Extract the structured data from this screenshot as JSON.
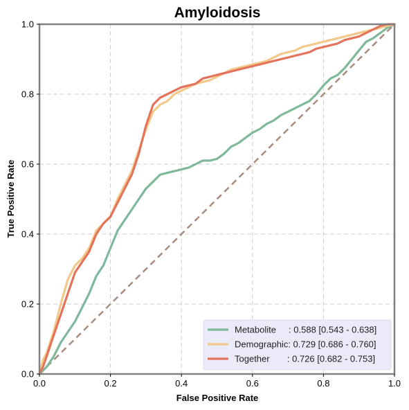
{
  "chart_data": {
    "type": "line",
    "title": "Amyloidosis",
    "xlabel": "False Positive Rate",
    "ylabel": "True Positive Rate",
    "xlim": [
      0,
      1
    ],
    "ylim": [
      0,
      1
    ],
    "xticks": [
      "0.0",
      "0.2",
      "0.4",
      "0.6",
      "0.8",
      "1.0"
    ],
    "yticks": [
      "0.0",
      "0.2",
      "0.4",
      "0.6",
      "0.8",
      "1.0"
    ],
    "grid": true,
    "legend_position": "bottom-right",
    "chance_line": {
      "x": [
        0,
        1
      ],
      "y": [
        0,
        1
      ],
      "color": "#a88c7d",
      "style": "dashed"
    },
    "series": [
      {
        "name": "Metabolite",
        "label": "Metabolite     : 0.588 [0.543 - 0.638]",
        "color": "#7fb89a",
        "x": [
          0,
          0.02,
          0.04,
          0.06,
          0.08,
          0.1,
          0.12,
          0.14,
          0.16,
          0.18,
          0.2,
          0.22,
          0.24,
          0.26,
          0.28,
          0.3,
          0.32,
          0.34,
          0.36,
          0.38,
          0.4,
          0.42,
          0.44,
          0.46,
          0.48,
          0.5,
          0.52,
          0.54,
          0.56,
          0.58,
          0.6,
          0.62,
          0.64,
          0.66,
          0.68,
          0.7,
          0.72,
          0.74,
          0.76,
          0.78,
          0.8,
          0.82,
          0.84,
          0.86,
          0.88,
          0.9,
          0.92,
          0.94,
          0.96,
          0.98,
          1.0
        ],
        "y": [
          0,
          0.02,
          0.05,
          0.09,
          0.12,
          0.15,
          0.19,
          0.23,
          0.28,
          0.31,
          0.36,
          0.41,
          0.44,
          0.47,
          0.5,
          0.53,
          0.55,
          0.57,
          0.575,
          0.58,
          0.585,
          0.59,
          0.6,
          0.61,
          0.61,
          0.615,
          0.63,
          0.65,
          0.66,
          0.675,
          0.69,
          0.7,
          0.715,
          0.725,
          0.74,
          0.75,
          0.76,
          0.77,
          0.78,
          0.8,
          0.825,
          0.845,
          0.855,
          0.875,
          0.9,
          0.925,
          0.95,
          0.96,
          0.975,
          0.99,
          1.0
        ]
      },
      {
        "name": "Demographic",
        "label": "Demographic: 0.729 [0.686 - 0.760]",
        "color": "#f2c98a",
        "x": [
          0,
          0.01,
          0.02,
          0.04,
          0.06,
          0.08,
          0.1,
          0.12,
          0.14,
          0.16,
          0.18,
          0.2,
          0.22,
          0.24,
          0.26,
          0.28,
          0.3,
          0.32,
          0.34,
          0.36,
          0.38,
          0.4,
          0.42,
          0.44,
          0.46,
          0.48,
          0.5,
          0.52,
          0.54,
          0.56,
          0.58,
          0.6,
          0.62,
          0.64,
          0.66,
          0.68,
          0.7,
          0.72,
          0.74,
          0.76,
          0.78,
          0.8,
          0.82,
          0.84,
          0.86,
          0.88,
          0.9,
          0.92,
          0.94,
          0.96,
          0.98,
          1.0
        ],
        "y": [
          0,
          0.04,
          0.06,
          0.12,
          0.2,
          0.27,
          0.31,
          0.33,
          0.36,
          0.41,
          0.43,
          0.45,
          0.5,
          0.54,
          0.58,
          0.64,
          0.7,
          0.75,
          0.77,
          0.78,
          0.8,
          0.81,
          0.82,
          0.83,
          0.835,
          0.84,
          0.85,
          0.86,
          0.87,
          0.875,
          0.88,
          0.885,
          0.89,
          0.895,
          0.905,
          0.915,
          0.92,
          0.925,
          0.935,
          0.94,
          0.945,
          0.95,
          0.955,
          0.96,
          0.965,
          0.97,
          0.975,
          0.98,
          0.985,
          0.99,
          0.995,
          1.0
        ]
      },
      {
        "name": "Together",
        "label": "Together       : 0.726 [0.682 - 0.753]",
        "color": "#e3735a",
        "x": [
          0,
          0.01,
          0.02,
          0.04,
          0.06,
          0.08,
          0.1,
          0.12,
          0.14,
          0.16,
          0.18,
          0.2,
          0.22,
          0.24,
          0.26,
          0.28,
          0.3,
          0.32,
          0.34,
          0.36,
          0.38,
          0.4,
          0.42,
          0.44,
          0.46,
          0.48,
          0.5,
          0.52,
          0.54,
          0.56,
          0.58,
          0.6,
          0.62,
          0.64,
          0.66,
          0.68,
          0.7,
          0.72,
          0.74,
          0.76,
          0.78,
          0.8,
          0.82,
          0.84,
          0.86,
          0.88,
          0.9,
          0.92,
          0.94,
          0.96,
          0.98,
          1.0
        ],
        "y": [
          0,
          0.02,
          0.05,
          0.11,
          0.17,
          0.23,
          0.29,
          0.32,
          0.35,
          0.4,
          0.43,
          0.45,
          0.49,
          0.53,
          0.57,
          0.63,
          0.71,
          0.77,
          0.79,
          0.8,
          0.81,
          0.82,
          0.825,
          0.83,
          0.845,
          0.85,
          0.855,
          0.86,
          0.865,
          0.87,
          0.875,
          0.88,
          0.885,
          0.89,
          0.895,
          0.9,
          0.905,
          0.91,
          0.915,
          0.92,
          0.93,
          0.935,
          0.94,
          0.945,
          0.955,
          0.96,
          0.965,
          0.975,
          0.985,
          0.995,
          1.0,
          1.0
        ]
      }
    ]
  }
}
